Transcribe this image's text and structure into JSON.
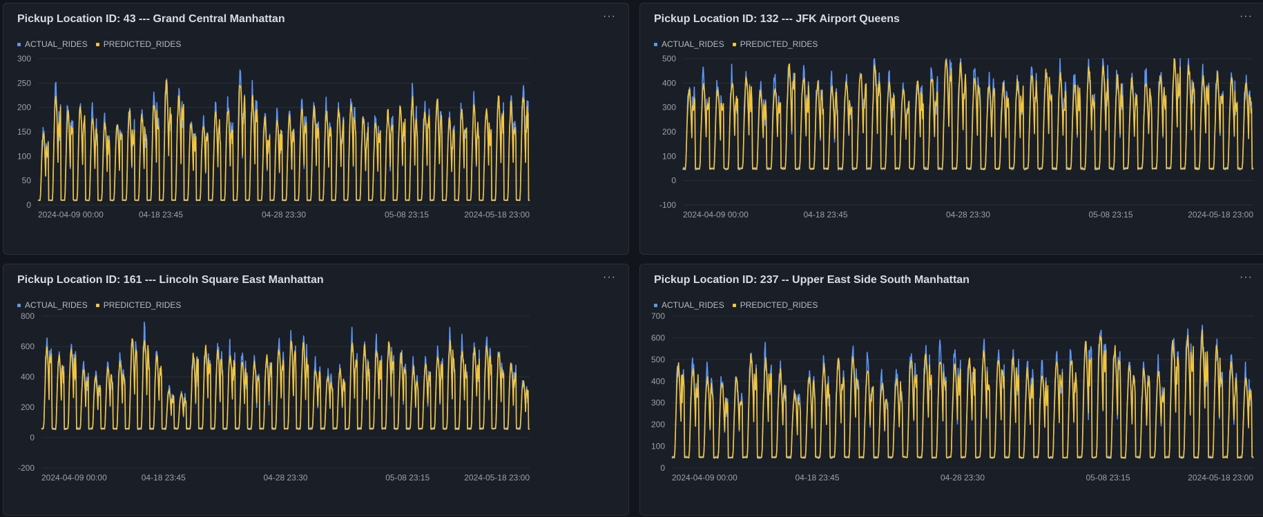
{
  "menu_glyph": "···",
  "legend": {
    "actual_label": "ACTUAL_RIDES",
    "predicted_label": "PREDICTED_RIDES",
    "actual_color": "#5a95f5",
    "predicted_color": "#f5c53a"
  },
  "panels": [
    {
      "title": "Pickup Location ID: 43 --- Grand Central Manhattan"
    },
    {
      "title": "Pickup Location ID: 132 --- JFK Airport Queens"
    },
    {
      "title": "Pickup Location ID: 161 --- Lincoln Square East Manhattan"
    },
    {
      "title": "Pickup Location ID: 237 -- Upper East Side South Manhattan"
    }
  ],
  "chart_data": [
    {
      "type": "line",
      "title": "Pickup Location ID: 43 --- Grand Central Manhattan",
      "x_range": [
        "2024-04-09 00:00",
        "2024-05-18 23:00"
      ],
      "x_tick_labels": [
        "2024-04-09 00:00",
        "04-18 23:45",
        "04-28 23:30",
        "05-08 23:15",
        "2024-05-18 23:00"
      ],
      "y_ticks": [
        0,
        50,
        100,
        150,
        200,
        250,
        300
      ],
      "ylim": [
        0,
        300
      ],
      "grid": true,
      "legend_position": "top-left",
      "series": [
        {
          "name": "ACTUAL_RIDES",
          "color": "#5a95f5"
        },
        {
          "name": "PREDICTED_RIDES",
          "color": "#f5c53a"
        }
      ],
      "daily_peak": [
        150,
        230,
        195,
        205,
        185,
        175,
        170,
        195,
        185,
        220,
        260,
        225,
        175,
        170,
        200,
        205,
        265,
        225,
        180,
        175,
        190,
        200,
        205,
        195,
        205,
        210,
        185,
        175,
        195,
        210,
        220,
        200,
        215,
        180,
        200,
        205,
        200,
        225,
        215,
        230
      ],
      "daily_trough": 10
    },
    {
      "type": "line",
      "title": "Pickup Location ID: 132 --- JFK Airport Queens",
      "x_range": [
        "2024-04-09 00:00",
        "2024-05-18 23:00"
      ],
      "x_tick_labels": [
        "2024-04-09 00:00",
        "04-18 23:45",
        "04-28 23:30",
        "05-08 23:15",
        "2024-05-18 23:00"
      ],
      "y_ticks": [
        -100,
        0,
        100,
        200,
        300,
        400,
        500
      ],
      "ylim": [
        -100,
        500
      ],
      "grid": true,
      "legend_position": "top-left",
      "series": [
        {
          "name": "ACTUAL_RIDES",
          "color": "#5a95f5"
        },
        {
          "name": "PREDICTED_RIDES",
          "color": "#f5c53a"
        }
      ],
      "daily_peak": [
        380,
        410,
        390,
        420,
        430,
        380,
        400,
        480,
        440,
        410,
        395,
        420,
        460,
        470,
        420,
        400,
        410,
        440,
        510,
        490,
        430,
        410,
        400,
        420,
        450,
        460,
        440,
        410,
        470,
        480,
        430,
        420,
        430,
        450,
        510,
        470,
        450,
        440,
        420,
        400
      ],
      "daily_trough": 50
    },
    {
      "type": "line",
      "title": "Pickup Location ID: 161 --- Lincoln Square East Manhattan",
      "x_range": [
        "2024-04-09 00:00",
        "2024-05-18 23:00"
      ],
      "x_tick_labels": [
        "2024-04-09 00:00",
        "04-18 23:45",
        "04-28 23:30",
        "05-08 23:15",
        "2024-05-18 23:00"
      ],
      "y_ticks": [
        -200,
        0,
        200,
        400,
        600,
        800
      ],
      "ylim": [
        -200,
        800
      ],
      "grid": true,
      "legend_position": "top-left",
      "series": [
        {
          "name": "ACTUAL_RIDES",
          "color": "#5a95f5"
        },
        {
          "name": "PREDICTED_RIDES",
          "color": "#f5c53a"
        }
      ],
      "daily_peak": [
        600,
        560,
        610,
        470,
        420,
        470,
        520,
        650,
        670,
        560,
        320,
        300,
        560,
        600,
        590,
        570,
        510,
        500,
        550,
        600,
        650,
        620,
        470,
        420,
        460,
        640,
        620,
        600,
        640,
        560,
        470,
        500,
        560,
        640,
        600,
        620,
        620,
        580,
        500,
        380
      ],
      "daily_trough": 60
    },
    {
      "type": "line",
      "title": "Pickup Location ID: 237 -- Upper East Side South Manhattan",
      "x_range": [
        "2024-04-09 00:00",
        "2024-05-18 23:00"
      ],
      "x_tick_labels": [
        "2024-04-09 00:00",
        "04-18 23:45",
        "04-28 23:30",
        "05-08 23:15",
        "2024-05-18 23:00"
      ],
      "y_ticks": [
        0,
        100,
        200,
        300,
        400,
        500,
        600,
        700
      ],
      "ylim": [
        0,
        700
      ],
      "grid": true,
      "legend_position": "top-left",
      "series": [
        {
          "name": "ACTUAL_RIDES",
          "color": "#5a95f5"
        },
        {
          "name": "PREDICTED_RIDES",
          "color": "#f5c53a"
        }
      ],
      "daily_peak": [
        480,
        470,
        430,
        400,
        420,
        530,
        510,
        460,
        360,
        440,
        480,
        500,
        530,
        470,
        400,
        430,
        520,
        540,
        520,
        500,
        510,
        550,
        530,
        510,
        460,
        460,
        500,
        520,
        580,
        640,
        560,
        480,
        470,
        460,
        600,
        620,
        640,
        570,
        500,
        430
      ],
      "daily_trough": 50
    }
  ]
}
